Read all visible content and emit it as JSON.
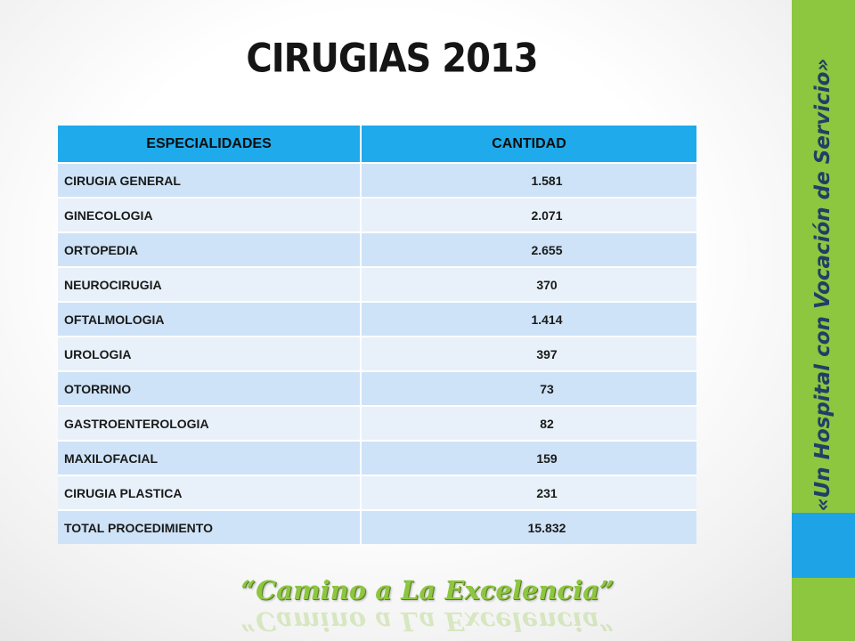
{
  "title": "CIRUGIAS 2013",
  "table": {
    "headers": [
      "ESPECIALIDADES",
      "CANTIDAD"
    ],
    "rows": [
      {
        "especialidad": "CIRUGIA GENERAL",
        "cantidad": "1.581"
      },
      {
        "especialidad": "GINECOLOGIA",
        "cantidad": "2.071"
      },
      {
        "especialidad": "ORTOPEDIA",
        "cantidad": "2.655"
      },
      {
        "especialidad": "NEUROCIRUGIA",
        "cantidad": "370"
      },
      {
        "especialidad": "OFTALMOLOGIA",
        "cantidad": "1.414"
      },
      {
        "especialidad": "UROLOGIA",
        "cantidad": "397"
      },
      {
        "especialidad": "OTORRINO",
        "cantidad": "73"
      },
      {
        "especialidad": "GASTROENTEROLOGIA",
        "cantidad": "82"
      },
      {
        "especialidad": "MAXILOFACIAL",
        "cantidad": "159"
      },
      {
        "especialidad": "CIRUGIA PLASTICA",
        "cantidad": "231"
      },
      {
        "especialidad": "TOTAL  PROCEDIMIENTO",
        "cantidad": "15.832"
      }
    ]
  },
  "sidebar": {
    "tagline": "«Un Hospital con Vocación de Servicio»"
  },
  "footer": {
    "motto": "“Camino a La Excelencia”"
  },
  "colors": {
    "header_blue": "#1faaeb",
    "row_odd": "#cee3f7",
    "row_even": "#e8f1fa",
    "sidebar_green": "#8dc63f",
    "sidebar_blue": "#1ea3e6",
    "tagline_navy": "#1f3f66"
  }
}
